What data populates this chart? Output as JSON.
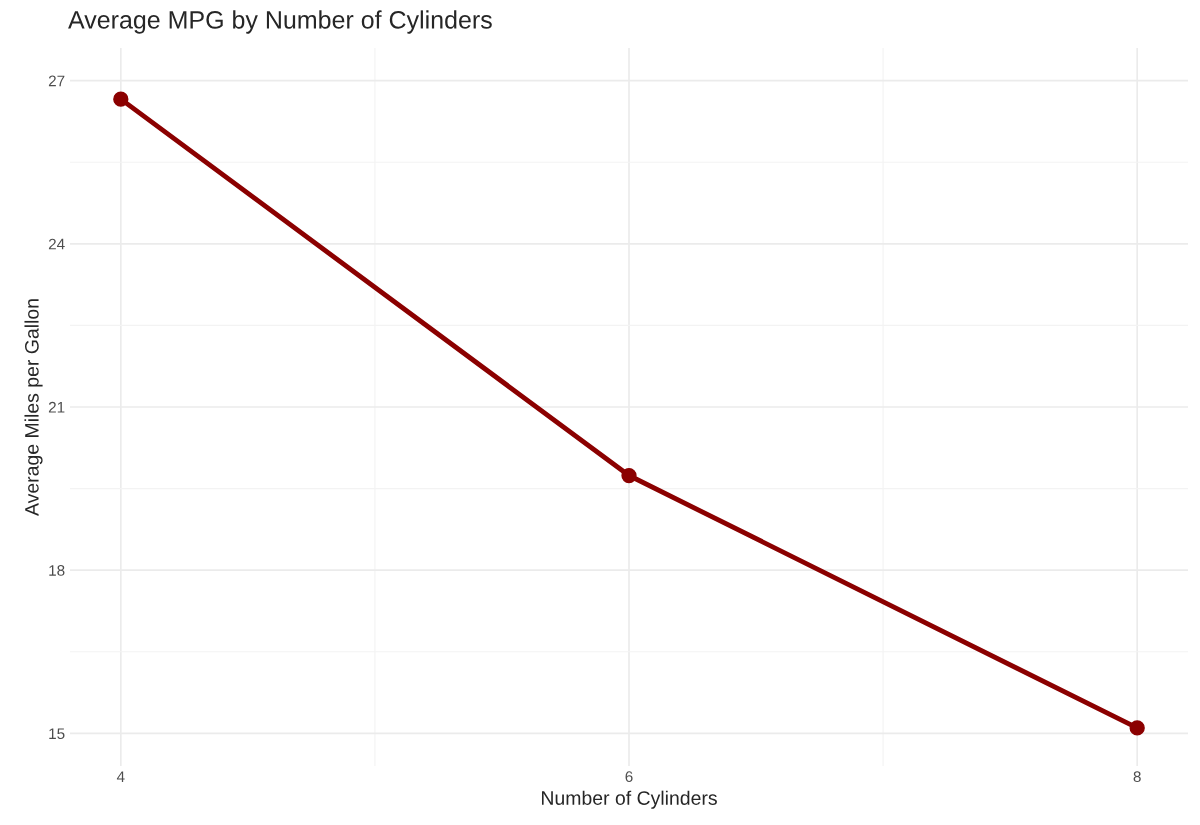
{
  "chart_data": {
    "type": "line",
    "title": "Average MPG by Number of Cylinders",
    "xlabel": "Number of Cylinders",
    "ylabel": "Average Miles per Gallon",
    "x": [
      4,
      6,
      8
    ],
    "series": [
      {
        "color": "#8b0000",
        "values": [
          26.66,
          19.74,
          15.1
        ]
      }
    ],
    "xlim": [
      3.8,
      8.2
    ],
    "xticks": [
      4,
      6,
      8
    ],
    "ylim": [
      14.4,
      27.6
    ],
    "yticks": [
      15,
      18,
      21,
      24,
      27
    ],
    "grid": true,
    "marker": "circle",
    "line_style": "solid"
  }
}
